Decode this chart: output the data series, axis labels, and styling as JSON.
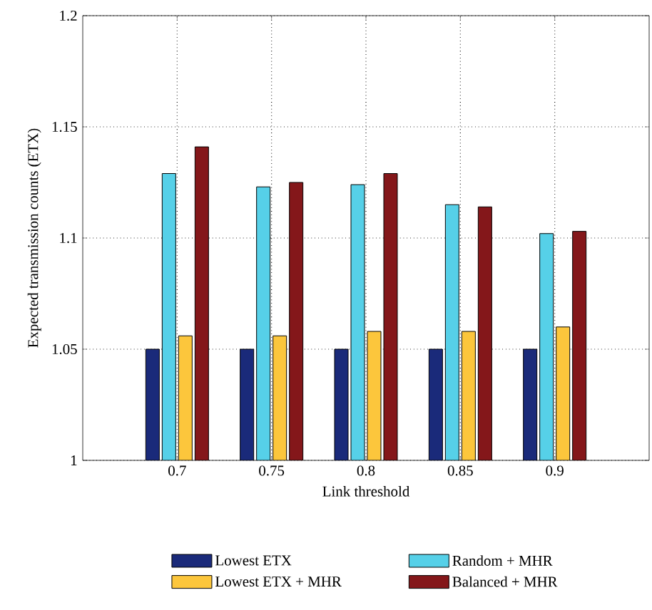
{
  "chart_data": {
    "type": "bar",
    "xlabel": "Link threshold",
    "ylabel": "Expected transmission counts (ETX)",
    "categories": [
      "0.7",
      "0.75",
      "0.8",
      "0.85",
      "0.9"
    ],
    "series": [
      {
        "name": "Lowest ETX",
        "color": "#1a2a7a",
        "values": [
          1.05,
          1.05,
          1.05,
          1.05,
          1.05
        ]
      },
      {
        "name": "Random + MHR",
        "color": "#56d0e8",
        "values": [
          1.129,
          1.123,
          1.124,
          1.115,
          1.102
        ]
      },
      {
        "name": "Lowest ETX + MHR",
        "color": "#fcc63c",
        "values": [
          1.056,
          1.056,
          1.058,
          1.058,
          1.06
        ]
      },
      {
        "name": "Balanced + MHR",
        "color": "#84171a",
        "values": [
          1.141,
          1.125,
          1.129,
          1.114,
          1.103
        ]
      }
    ],
    "ylim": [
      1,
      1.2
    ],
    "yticks": [
      1,
      1.05,
      1.1,
      1.15,
      1.2
    ],
    "grid": true,
    "legend": "bottom"
  }
}
